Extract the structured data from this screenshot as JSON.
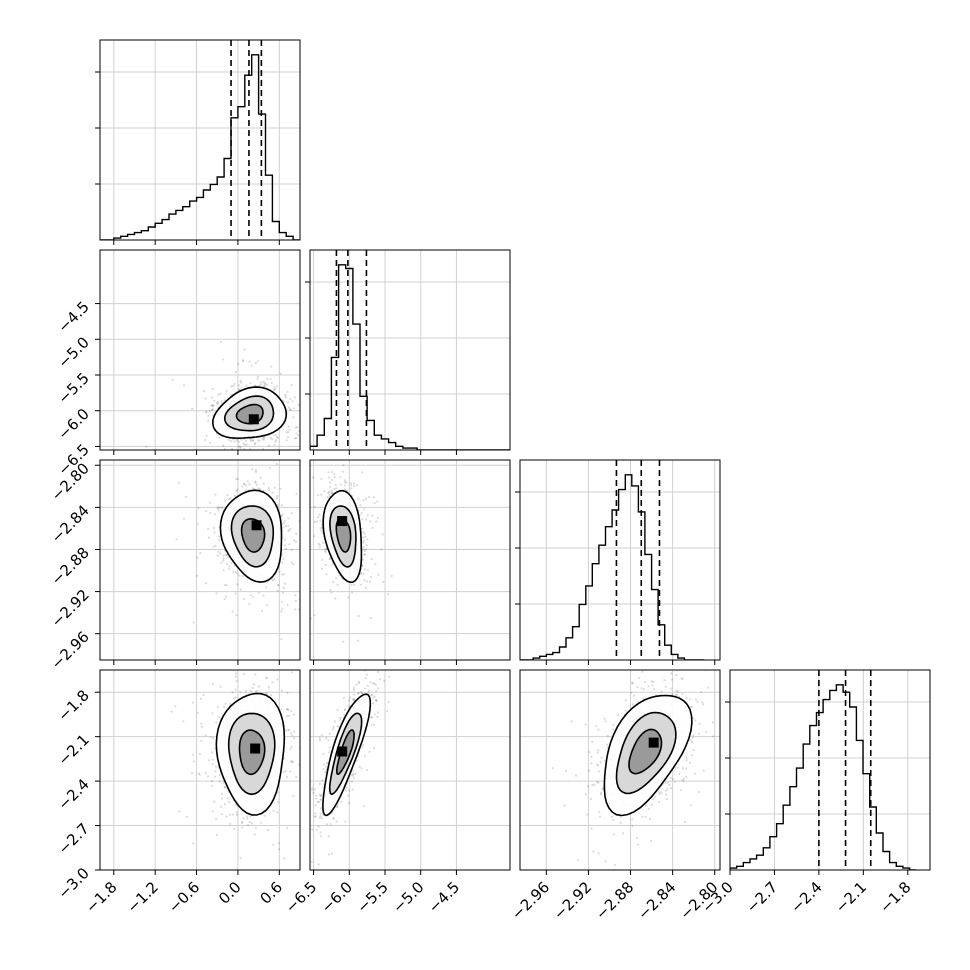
{
  "chart_data": {
    "type": "scatter",
    "grid": true,
    "parameters": [
      {
        "range": [
          -2.0,
          0.9
        ],
        "ticks": [
          -1.8,
          -1.2,
          -0.6,
          0.0,
          0.6
        ],
        "tick_labels": [
          "−1.8",
          "−1.2",
          "−0.6",
          "0.0",
          "0.6"
        ],
        "quantiles": [
          -0.1,
          0.16,
          0.34
        ],
        "histogram": {
          "bin_edges": [
            -2.0,
            -1.9,
            -1.8,
            -1.7,
            -1.6,
            -1.5,
            -1.4,
            -1.3,
            -1.2,
            -1.1,
            -1.0,
            -0.9,
            -0.8,
            -0.7,
            -0.6,
            -0.5,
            -0.4,
            -0.3,
            -0.2,
            -0.1,
            0.0,
            0.1,
            0.2,
            0.3,
            0.4,
            0.5,
            0.6,
            0.7,
            0.8,
            0.9
          ],
          "counts": [
            0,
            0,
            1,
            2,
            3,
            4,
            5,
            7,
            9,
            11,
            14,
            16,
            18,
            21,
            23,
            27,
            30,
            34,
            44,
            66,
            72,
            89,
            100,
            68,
            35,
            10,
            4,
            2,
            0
          ]
        },
        "mode": 0.23
      },
      {
        "range": [
          -6.55,
          -3.75
        ],
        "ticks": [
          -6.5,
          -6.0,
          -5.5,
          -5.0,
          -4.5
        ],
        "tick_labels": [
          "−6.5",
          "−6.0",
          "−5.5",
          "−5.0",
          "−4.5"
        ],
        "quantiles": [
          -6.18,
          -6.02,
          -5.76
        ],
        "histogram": {
          "bin_edges": [
            -6.55,
            -6.45,
            -6.35,
            -6.25,
            -6.15,
            -6.05,
            -5.95,
            -5.85,
            -5.75,
            -5.65,
            -5.55,
            -5.45,
            -5.35,
            -5.25,
            -5.15,
            -5.05,
            -4.95,
            -4.85,
            -4.75,
            -4.65,
            -4.55,
            -4.45,
            -4.35,
            -4.25,
            -4.15,
            -4.05,
            -3.95,
            -3.85,
            -3.75
          ],
          "counts": [
            2,
            8,
            17,
            50,
            100,
            98,
            68,
            29,
            16,
            8,
            6,
            4,
            2,
            1,
            1,
            0,
            0,
            0,
            0,
            0,
            0,
            0,
            0,
            0,
            0,
            0,
            0,
            0
          ]
        },
        "mode": -6.1
      },
      {
        "range": [
          -2.985,
          -2.795
        ],
        "ticks": [
          -2.96,
          -2.92,
          -2.88,
          -2.84,
          -2.8
        ],
        "tick_labels": [
          "−2.96",
          "−2.92",
          "−2.88",
          "−2.84",
          "−2.80"
        ],
        "quantiles": [
          -2.8934,
          -2.8698,
          -2.8525
        ],
        "histogram": {
          "bin_edges": [
            -2.985,
            -2.9788,
            -2.9725,
            -2.9663,
            -2.96,
            -2.9538,
            -2.9475,
            -2.9413,
            -2.935,
            -2.9288,
            -2.9225,
            -2.9163,
            -2.91,
            -2.9038,
            -2.8975,
            -2.8913,
            -2.885,
            -2.8788,
            -2.8725,
            -2.8663,
            -2.86,
            -2.8538,
            -2.8475,
            -2.8413,
            -2.835,
            -2.8288,
            -2.8225,
            -2.8163,
            -2.81
          ],
          "counts": [
            0,
            0,
            1,
            2,
            3,
            4,
            7,
            12,
            18,
            30,
            40,
            52,
            62,
            72,
            81,
            92,
            100,
            94,
            80,
            57,
            38,
            19,
            8,
            3,
            1,
            0,
            0,
            0
          ]
        },
        "mode": -2.86
      },
      {
        "range": [
          -3.0,
          -1.65
        ],
        "ticks": [
          -3.0,
          -2.7,
          -2.4,
          -2.1,
          -1.8
        ],
        "tick_labels": [
          "−3.0",
          "−2.7",
          "−2.4",
          "−2.1",
          "−1.8"
        ],
        "quantiles": [
          -2.4,
          -2.22,
          -2.05
        ],
        "histogram": {
          "bin_edges": [
            -3.0,
            -2.9551,
            -2.9102,
            -2.8653,
            -2.8204,
            -2.7755,
            -2.7306,
            -2.6857,
            -2.6408,
            -2.5959,
            -2.551,
            -2.5061,
            -2.4612,
            -2.4163,
            -2.3714,
            -2.3265,
            -2.2816,
            -2.2367,
            -2.1918,
            -2.1469,
            -2.102,
            -2.0571,
            -2.0122,
            -1.9673,
            -1.9224,
            -1.8775,
            -1.8326,
            -1.7877,
            -1.7428
          ],
          "counts": [
            1,
            2,
            4,
            6,
            8,
            12,
            18,
            25,
            35,
            45,
            55,
            68,
            78,
            85,
            92,
            97,
            100,
            96,
            88,
            70,
            52,
            34,
            20,
            10,
            4,
            2,
            1,
            0
          ]
        },
        "mode": -2.15
      }
    ],
    "pairs": [
      {
        "row": 1,
        "col": 0,
        "center": [
          0.18,
          -6.05
        ],
        "sigma": [
          0.22,
          0.16
        ],
        "rho": 0.15
      },
      {
        "row": 2,
        "col": 0,
        "center": [
          0.22,
          -2.866
        ],
        "sigma": [
          0.2,
          0.018
        ],
        "rho": -0.1
      },
      {
        "row": 2,
        "col": 1,
        "center": [
          -6.08,
          -2.866
        ],
        "sigma": [
          0.12,
          0.018
        ],
        "rho": -0.25
      },
      {
        "row": 3,
        "col": 0,
        "center": [
          0.2,
          -2.2
        ],
        "sigma": [
          0.22,
          0.17
        ],
        "rho": 0.0
      },
      {
        "row": 3,
        "col": 1,
        "center": [
          -6.05,
          -2.2
        ],
        "sigma": [
          0.14,
          0.17
        ],
        "rho": 0.8
      },
      {
        "row": 3,
        "col": 2,
        "center": [
          -2.866,
          -2.2
        ],
        "sigma": [
          0.018,
          0.17
        ],
        "rho": 0.45
      }
    ],
    "modes": [
      {
        "row": 1,
        "col": 0,
        "x": 0.23,
        "y": -6.12
      },
      {
        "row": 2,
        "col": 0,
        "x": 0.27,
        "y": -2.857
      },
      {
        "row": 2,
        "col": 1,
        "x": -6.1,
        "y": -2.853
      },
      {
        "row": 3,
        "col": 0,
        "x": 0.25,
        "y": -2.18
      },
      {
        "row": 3,
        "col": 1,
        "x": -6.1,
        "y": -2.2
      },
      {
        "row": 3,
        "col": 2,
        "x": -2.858,
        "y": -2.14
      }
    ]
  }
}
